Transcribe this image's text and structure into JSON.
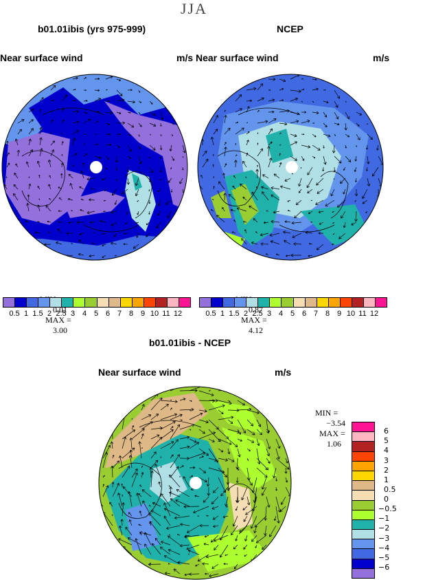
{
  "header": {
    "season": "JJA"
  },
  "panels": [
    {
      "title": "b01.01ibis (yrs 975-999)",
      "variable": "Near surface wind",
      "units": "m/s",
      "min_label": "MIN =",
      "min_value": "0.01",
      "max_label": "MAX =",
      "max_value": "3.00"
    },
    {
      "title": "NCEP",
      "variable": "Near surface wind",
      "units": "m/s",
      "min_label": "MIN =",
      "min_value": "0.87",
      "max_label": "MAX =",
      "max_value": "4.12"
    },
    {
      "title": "b01.01ibis - NCEP",
      "variable": "Near surface wind",
      "units": "m/s",
      "min_label": "MIN =",
      "min_value": "−3.54",
      "max_label": "MAX =",
      "max_value": "1.06"
    }
  ],
  "colorbar_abs": {
    "colors": [
      "#9370db",
      "#0000cd",
      "#4169e1",
      "#6495ed",
      "#b0e0e6",
      "#20b2aa",
      "#adff2f",
      "#9acd32",
      "#f5deb3",
      "#deb887",
      "#ffd700",
      "#ffa500",
      "#ff4500",
      "#b22222",
      "#ffb6c1",
      "#ff1493"
    ],
    "labels": [
      "0.5",
      "1",
      "1.5",
      "2",
      "2.5",
      "3",
      "4",
      "5",
      "6",
      "7",
      "8",
      "9",
      "10",
      "11",
      "12"
    ]
  },
  "colorbar_diff": {
    "colors": [
      "#ff1493",
      "#ffb6c1",
      "#b22222",
      "#ff4500",
      "#ffa500",
      "#ffd700",
      "#deb887",
      "#f5deb3",
      "#9acd32",
      "#adff2f",
      "#20b2aa",
      "#b0e0e6",
      "#6495ed",
      "#4169e1",
      "#0000cd",
      "#9370db"
    ],
    "labels": [
      "6",
      "5",
      "4",
      "3",
      "2",
      "1",
      "0.5",
      "0",
      "−0.5",
      "−1",
      "−2",
      "−3",
      "−4",
      "−5",
      "−6"
    ]
  }
}
